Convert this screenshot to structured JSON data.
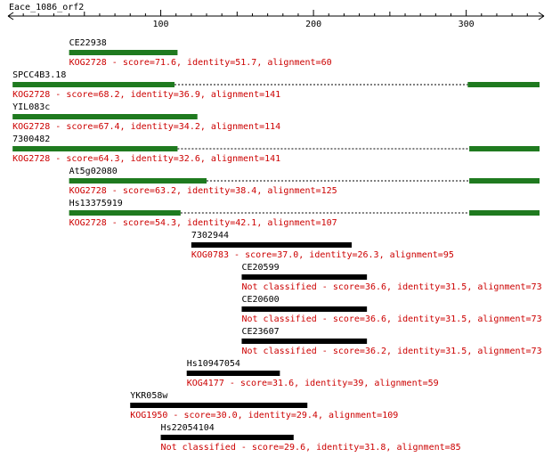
{
  "query": {
    "name": "Eace_1086_orf2",
    "length": 338,
    "axis_start": 1,
    "axis_end": 338,
    "ticks": [
      100,
      200,
      300
    ]
  },
  "colors": {
    "red_text": "#cc0000",
    "green_bar": "#1f7a1f",
    "black_bar": "#000000",
    "axis": "#000000"
  },
  "hits": [
    {
      "name": "CE22938",
      "description": "KOG2728 - score=71.6, identity=51.7, alignment=60",
      "color": "green",
      "segments": [
        [
          40,
          111
        ]
      ],
      "dotted": null
    },
    {
      "name": "SPCC4B3.18",
      "description": "KOG2728 - score=68.2, identity=36.9, alignment=141",
      "color": "green",
      "segments": [
        [
          3,
          109
        ],
        [
          301,
          348
        ]
      ],
      "dotted": [
        109,
        301
      ]
    },
    {
      "name": "YIL083c",
      "description": "KOG2728 - score=67.4, identity=34.2, alignment=114",
      "color": "green",
      "segments": [
        [
          3,
          124
        ]
      ],
      "dotted": null
    },
    {
      "name": "7300482",
      "description": "KOG2728 - score=64.3, identity=32.6, alignment=141",
      "color": "green",
      "segments": [
        [
          3,
          111
        ],
        [
          302,
          348
        ]
      ],
      "dotted": [
        111,
        302
      ]
    },
    {
      "name": "At5g02080",
      "description": "KOG2728 - score=63.2, identity=38.4, alignment=125",
      "color": "green",
      "segments": [
        [
          40,
          130
        ],
        [
          302,
          348
        ]
      ],
      "dotted": [
        130,
        302
      ]
    },
    {
      "name": "Hs13375919",
      "description": "KOG2728 - score=54.3, identity=42.1, alignment=107",
      "color": "green",
      "segments": [
        [
          40,
          113
        ],
        [
          302,
          348
        ]
      ],
      "dotted": [
        113,
        302
      ]
    },
    {
      "name": "7302944",
      "description": "KOG0783 - score=37.0, identity=26.3, alignment=95",
      "color": "black",
      "segments": [
        [
          120,
          225
        ]
      ],
      "dotted": null
    },
    {
      "name": "CE20599",
      "description": "Not classified - score=36.6, identity=31.5, alignment=73",
      "color": "black",
      "segments": [
        [
          153,
          235
        ]
      ],
      "dotted": null
    },
    {
      "name": "CE20600",
      "description": "Not classified - score=36.6, identity=31.5, alignment=73",
      "color": "black",
      "segments": [
        [
          153,
          235
        ]
      ],
      "dotted": null
    },
    {
      "name": "CE23607",
      "description": "Not classified - score=36.2, identity=31.5, alignment=73",
      "color": "black",
      "segments": [
        [
          153,
          235
        ]
      ],
      "dotted": null
    },
    {
      "name": "Hs10947054",
      "description": "KOG4177 - score=31.6, identity=39, alignment=59",
      "color": "black",
      "segments": [
        [
          117,
          178
        ]
      ],
      "dotted": null
    },
    {
      "name": "YKR058w",
      "description": "KOG1950 - score=30.0, identity=29.4, alignment=109",
      "color": "black",
      "segments": [
        [
          80,
          196
        ]
      ],
      "dotted": null
    },
    {
      "name": "Hs22054104",
      "description": "Not classified - score=29.6, identity=31.8, alignment=85",
      "color": "black",
      "segments": [
        [
          100,
          187
        ]
      ],
      "dotted": null
    }
  ]
}
